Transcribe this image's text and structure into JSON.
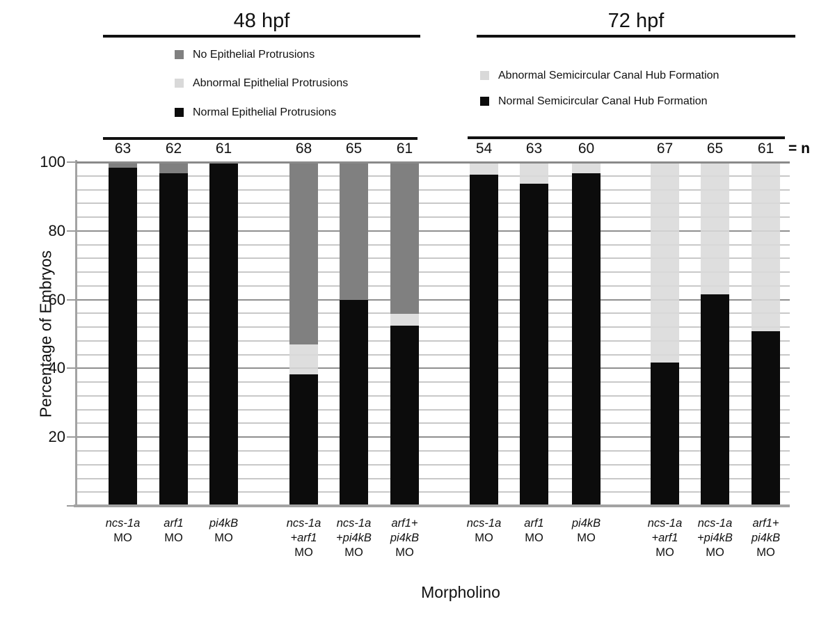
{
  "chart_data": {
    "type": "stacked-bar",
    "title_left": "48 hpf",
    "title_right": "72 hpf",
    "ylabel": "Percentage of Embryos",
    "xlabel": "Morpholino",
    "n_suffix": "= n",
    "ylim": [
      0,
      100
    ],
    "yticks": [
      100,
      80,
      60,
      40,
      20
    ],
    "minor_gridline_step": 4,
    "major_gridline_step": 20,
    "grid": true,
    "legend_position": "top",
    "colors": {
      "black": "#0c0c0c",
      "dark_gray": "#808080",
      "light_gray": "#d9d9d9"
    },
    "legend_left": [
      {
        "label": "No Epithelial Protrusions",
        "color_key": "dark_gray"
      },
      {
        "label": "Abnormal Epithelial Protrusions",
        "color_key": "light_gray"
      },
      {
        "label": "Normal Epithelial Protrusions",
        "color_key": "black"
      }
    ],
    "legend_right": [
      {
        "label": "Abnormal Semicircular Canal Hub Formation",
        "color_key": "light_gray"
      },
      {
        "label": "Normal Semicircular Canal Hub Formation",
        "color_key": "black"
      }
    ],
    "bars": [
      {
        "group": "48 hpf",
        "n": "63",
        "label_lines": [
          {
            "text": "ncs-1a",
            "italic": true
          },
          {
            "text": "MO",
            "italic": false
          }
        ],
        "segments": [
          {
            "name": "Normal Epithelial Protrusions",
            "value": 98.4,
            "color_key": "black"
          },
          {
            "name": "No Epithelial Protrusions",
            "value": 1.6,
            "color_key": "dark_gray"
          }
        ]
      },
      {
        "group": "48 hpf",
        "n": "62",
        "label_lines": [
          {
            "text": "arf1",
            "italic": true
          },
          {
            "text": "MO",
            "italic": false
          }
        ],
        "segments": [
          {
            "name": "Normal Epithelial Protrusions",
            "value": 96.8,
            "color_key": "black"
          },
          {
            "name": "No Epithelial Protrusions",
            "value": 3.2,
            "color_key": "dark_gray"
          }
        ]
      },
      {
        "group": "48 hpf",
        "n": "61",
        "label_lines": [
          {
            "text": "pi4kB",
            "italic": true
          },
          {
            "text": "MO",
            "italic": false
          }
        ],
        "segments": [
          {
            "name": "Normal Epithelial Protrusions",
            "value": 100,
            "color_key": "black"
          }
        ]
      },
      {
        "group": "48 hpf",
        "n": "68",
        "label_lines": [
          {
            "text": "ncs-1a",
            "italic": true
          },
          {
            "text": "+arf1",
            "italic": true
          },
          {
            "text": "MO",
            "italic": false
          }
        ],
        "segments": [
          {
            "name": "Normal Epithelial Protrusions",
            "value": 38.2,
            "color_key": "black"
          },
          {
            "name": "Abnormal Epithelial Protrusions",
            "value": 8.8,
            "color_key": "light_gray"
          },
          {
            "name": "No Epithelial Protrusions",
            "value": 53.0,
            "color_key": "dark_gray"
          }
        ]
      },
      {
        "group": "48 hpf",
        "n": "65",
        "label_lines": [
          {
            "text": "ncs-1a",
            "italic": true
          },
          {
            "text": "+pi4kB",
            "italic": true
          },
          {
            "text": "MO",
            "italic": false
          }
        ],
        "segments": [
          {
            "name": "Normal Epithelial Protrusions",
            "value": 60.0,
            "color_key": "black"
          },
          {
            "name": "No Epithelial Protrusions",
            "value": 40.0,
            "color_key": "dark_gray"
          }
        ]
      },
      {
        "group": "48 hpf",
        "n": "61",
        "label_lines": [
          {
            "text": "arf1+",
            "italic": true
          },
          {
            "text": "pi4kB",
            "italic": true
          },
          {
            "text": "MO",
            "italic": false
          }
        ],
        "segments": [
          {
            "name": "Normal Epithelial Protrusions",
            "value": 52.5,
            "color_key": "black"
          },
          {
            "name": "Abnormal Epithelial Protrusions",
            "value": 3.3,
            "color_key": "light_gray"
          },
          {
            "name": "No Epithelial Protrusions",
            "value": 44.2,
            "color_key": "dark_gray"
          }
        ]
      },
      {
        "group": "72 hpf",
        "n": "54",
        "label_lines": [
          {
            "text": "ncs-1a",
            "italic": true
          },
          {
            "text": "MO",
            "italic": false
          }
        ],
        "segments": [
          {
            "name": "Normal Semicircular Canal Hub Formation",
            "value": 96.3,
            "color_key": "black"
          },
          {
            "name": "Abnormal Semicircular Canal Hub Formation",
            "value": 3.7,
            "color_key": "light_gray"
          }
        ]
      },
      {
        "group": "72 hpf",
        "n": "63",
        "label_lines": [
          {
            "text": "arf1",
            "italic": true
          },
          {
            "text": "MO",
            "italic": false
          }
        ],
        "segments": [
          {
            "name": "Normal Semicircular Canal Hub Formation",
            "value": 93.7,
            "color_key": "black"
          },
          {
            "name": "Abnormal Semicircular Canal Hub Formation",
            "value": 6.3,
            "color_key": "light_gray"
          }
        ]
      },
      {
        "group": "72 hpf",
        "n": "60",
        "label_lines": [
          {
            "text": "pi4kB",
            "italic": true
          },
          {
            "text": "MO",
            "italic": false
          }
        ],
        "segments": [
          {
            "name": "Normal Semicircular Canal Hub Formation",
            "value": 96.7,
            "color_key": "black"
          },
          {
            "name": "Abnormal Semicircular Canal Hub Formation",
            "value": 3.3,
            "color_key": "light_gray"
          }
        ]
      },
      {
        "group": "72 hpf",
        "n": "67",
        "label_lines": [
          {
            "text": "ncs-1a",
            "italic": true
          },
          {
            "text": "+arf1",
            "italic": true
          },
          {
            "text": "MO",
            "italic": false
          }
        ],
        "segments": [
          {
            "name": "Normal Semicircular Canal Hub Formation",
            "value": 41.8,
            "color_key": "black"
          },
          {
            "name": "Abnormal Semicircular Canal Hub Formation",
            "value": 58.2,
            "color_key": "light_gray"
          }
        ]
      },
      {
        "group": "72 hpf",
        "n": "65",
        "label_lines": [
          {
            "text": "ncs-1a",
            "italic": true
          },
          {
            "text": "+pi4kB",
            "italic": true
          },
          {
            "text": "MO",
            "italic": false
          }
        ],
        "segments": [
          {
            "name": "Normal Semicircular Canal Hub Formation",
            "value": 61.5,
            "color_key": "black"
          },
          {
            "name": "Abnormal Semicircular Canal Hub Formation",
            "value": 38.5,
            "color_key": "light_gray"
          }
        ]
      },
      {
        "group": "72 hpf",
        "n": "61",
        "label_lines": [
          {
            "text": "arf1+",
            "italic": true
          },
          {
            "text": "pi4kB",
            "italic": true
          },
          {
            "text": "MO",
            "italic": false
          }
        ],
        "segments": [
          {
            "name": "Normal Semicircular Canal Hub Formation",
            "value": 50.8,
            "color_key": "black"
          },
          {
            "name": "Abnormal Semicircular Canal Hub Formation",
            "value": 49.2,
            "color_key": "light_gray"
          }
        ]
      }
    ]
  }
}
